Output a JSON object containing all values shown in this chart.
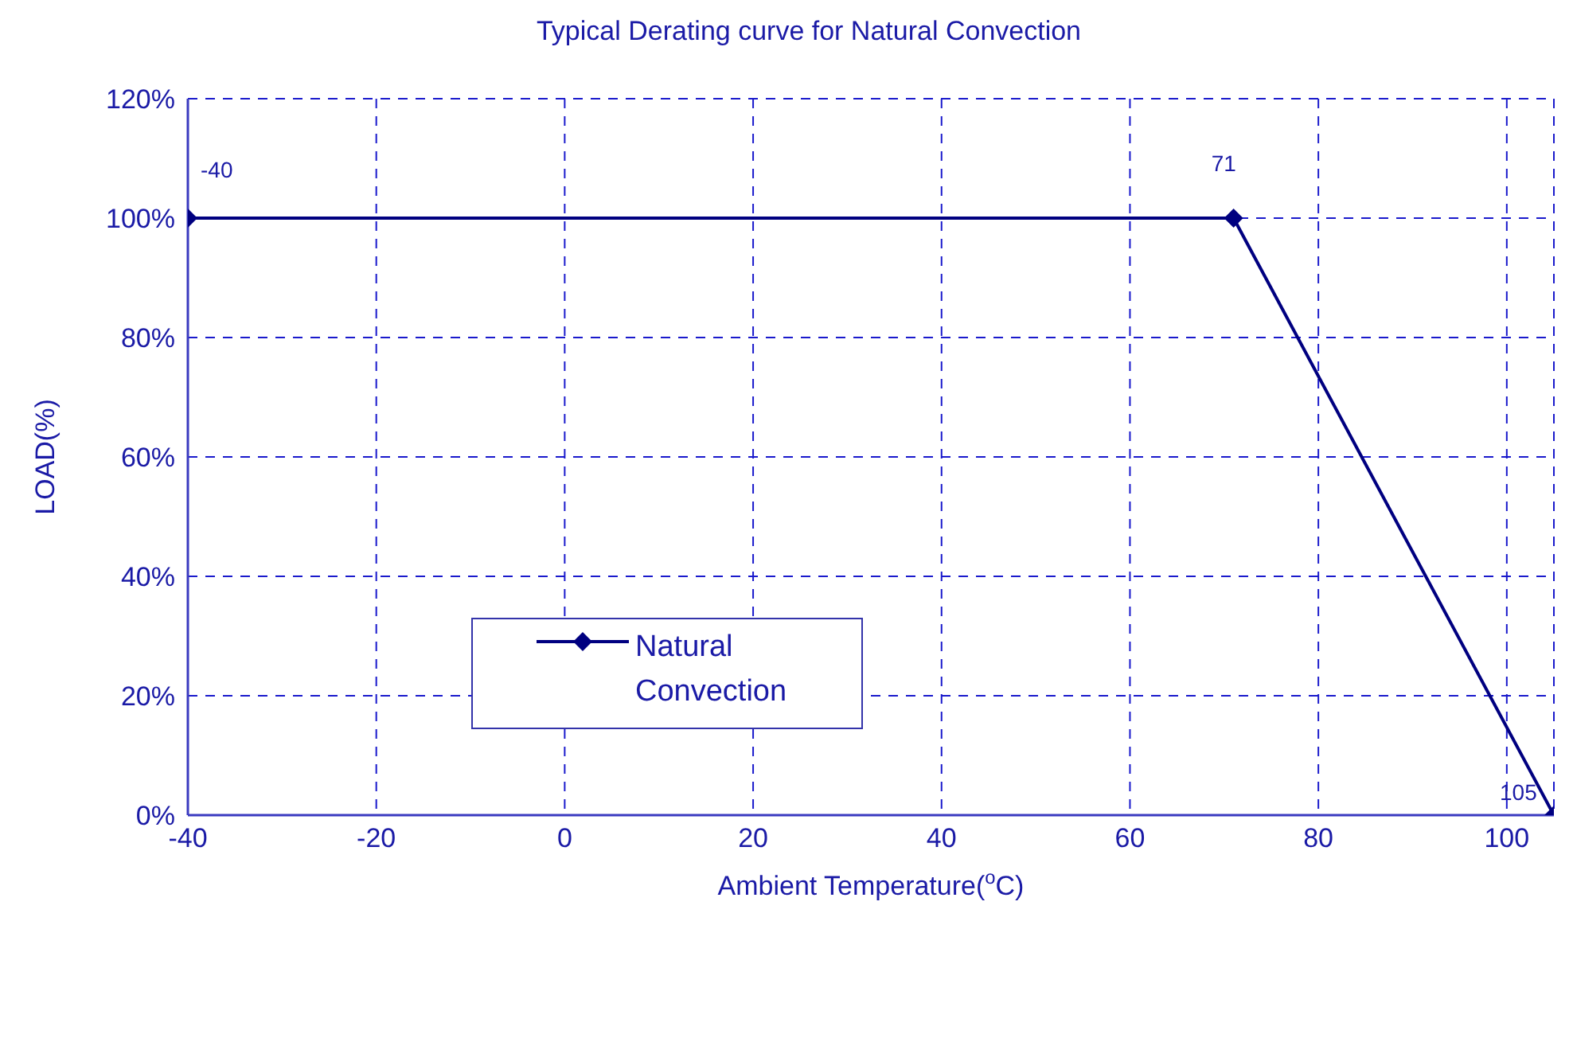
{
  "chart_data": {
    "type": "line",
    "title": "Typical Derating curve for Natural Convection",
    "xlabel": "Ambient Temperature($^{o}$C)",
    "ylabel": "LOAD(%)",
    "x": [
      -40,
      71,
      105
    ],
    "series": [
      {
        "name": "Natural Convection",
        "color": "#000080",
        "values": [
          100,
          100,
          0
        ]
      }
    ],
    "xlim": [
      -40,
      105
    ],
    "xticks": [
      -40,
      -20,
      0,
      20,
      40,
      60,
      80,
      100
    ],
    "ylim": [
      0,
      120
    ],
    "yticks": [
      {
        "value": 0,
        "label": "0%"
      },
      {
        "value": 20,
        "label": "20%"
      },
      {
        "value": 40,
        "label": "40%"
      },
      {
        "value": 60,
        "label": "60%"
      },
      {
        "value": 80,
        "label": "80%"
      },
      {
        "value": 100,
        "label": "100%"
      },
      {
        "value": 120,
        "label": "120%"
      }
    ],
    "annotations": [
      {
        "text": "-40",
        "x": -40,
        "y": 100
      },
      {
        "text": "71",
        "x": 71,
        "y": 100
      },
      {
        "text": "105",
        "x": 105,
        "y": 0
      }
    ],
    "grid": true,
    "legend": "left",
    "marker": "diamond",
    "line_style": "solid"
  }
}
